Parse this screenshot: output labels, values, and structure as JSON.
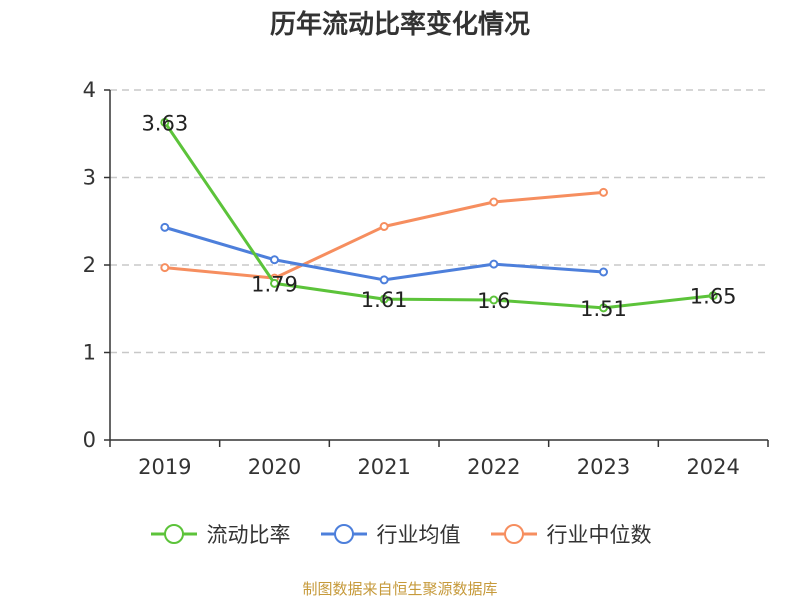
{
  "chart_data": {
    "type": "line",
    "title": "历年流动比率变化情况",
    "categories": [
      "2019",
      "2020",
      "2021",
      "2022",
      "2023",
      "2024"
    ],
    "ylim": [
      0,
      4
    ],
    "yticks": [
      0,
      1,
      2,
      3,
      4
    ],
    "grid": true,
    "legend_position": "bottom",
    "series": [
      {
        "name": "流动比率",
        "color": "#5cc33a",
        "values": [
          3.63,
          1.79,
          1.61,
          1.6,
          1.51,
          1.65
        ],
        "labels": [
          "3.63",
          "1.79",
          "1.61",
          "1.6",
          "1.51",
          "1.65"
        ]
      },
      {
        "name": "行业均值",
        "color": "#4d7fdb",
        "values": [
          2.43,
          2.06,
          1.83,
          2.01,
          1.92,
          null
        ]
      },
      {
        "name": "行业中位数",
        "color": "#f68e5f",
        "values": [
          1.97,
          1.85,
          2.44,
          2.72,
          2.83,
          null
        ]
      }
    ]
  },
  "source": {
    "text": "制图数据来自恒生聚源数据库",
    "color": "#c69a3b"
  }
}
